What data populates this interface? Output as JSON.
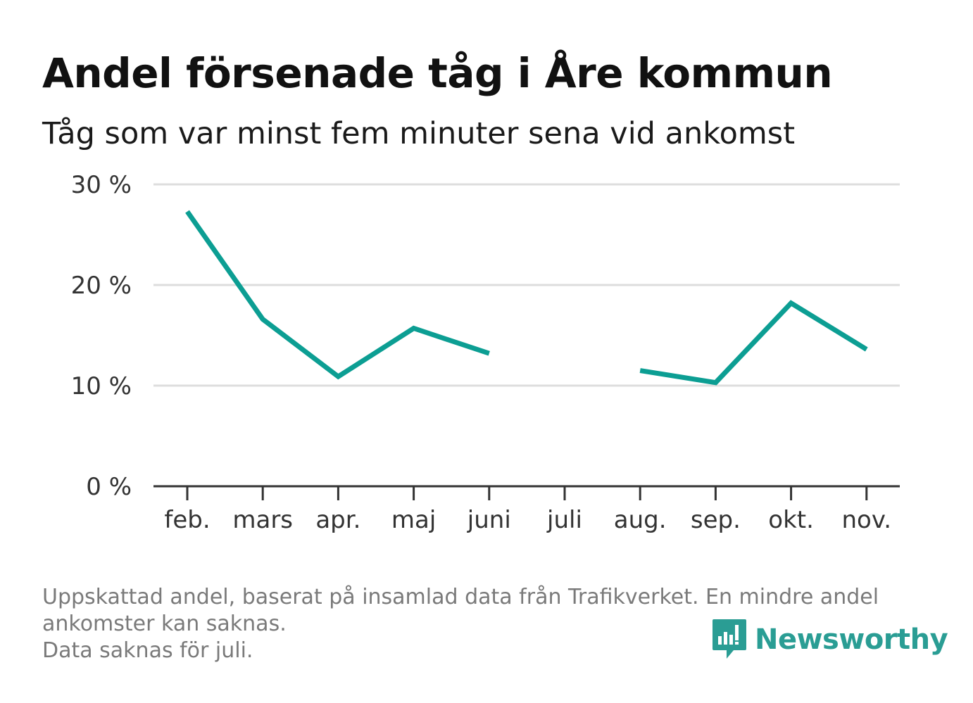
{
  "header": {
    "title": "Andel försenade tåg i Åre kommun",
    "subtitle": "Tåg som var minst fem minuter sena vid ankomst"
  },
  "chart_data": {
    "type": "line",
    "title": "Andel försenade tåg i Åre kommun",
    "subtitle": "Tåg som var minst fem minuter sena vid ankomst",
    "categories": [
      "feb.",
      "mars",
      "apr.",
      "maj",
      "juni",
      "juli",
      "aug.",
      "sep.",
      "okt.",
      "nov."
    ],
    "series": [
      {
        "values": [
          27.3,
          16.6,
          10.9,
          15.7,
          13.2,
          null,
          11.5,
          10.3,
          18.2,
          13.6
        ]
      }
    ],
    "y_ticks": [
      0,
      10,
      20,
      30
    ],
    "y_tick_labels": [
      "0 %",
      "10 %",
      "20 %",
      "30 %"
    ],
    "ylim": [
      0,
      30
    ],
    "grid": true,
    "line_color": "#0c9e93",
    "grid_color": "#dddddd",
    "axis_color": "#333333"
  },
  "footer": {
    "note_line1": "Uppskattad andel, baserat på insamlad data från Trafikverket. En mindre andel ankomster kan saknas.",
    "note_line2": "Data saknas för juli."
  },
  "brand": {
    "name": "Newsworthy",
    "icon": "newsworthy-logo-icon",
    "color": "#2a9d94"
  }
}
